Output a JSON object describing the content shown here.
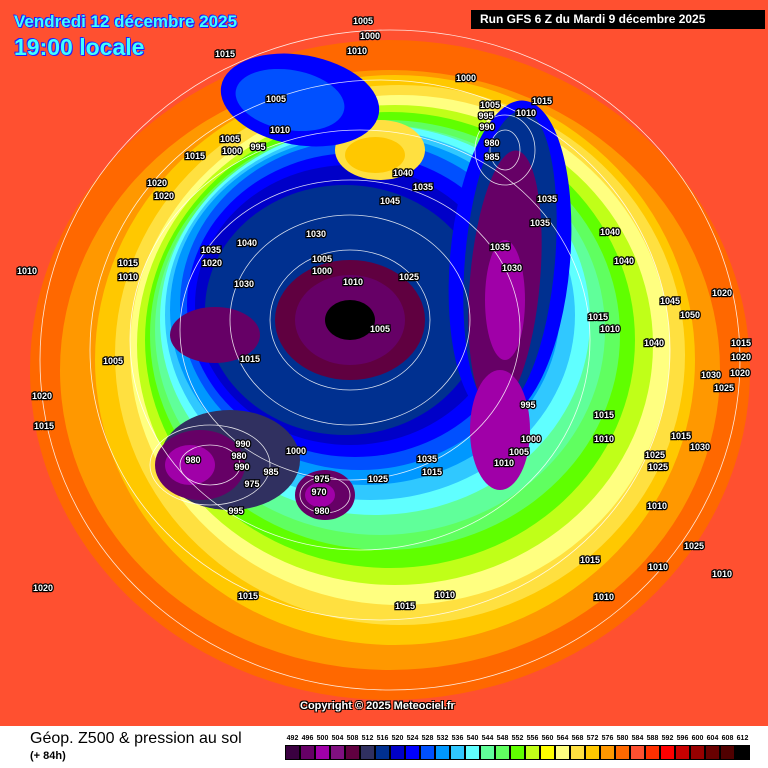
{
  "header": {
    "date": "Vendredi 12 décembre 2025",
    "time": "19:00 locale",
    "run": "Run GFS 6 Z du Mardi 9 décembre 2025"
  },
  "map": {
    "copyright": "Copyright © 2025 Meteociel.fr",
    "pressure_labels": [
      "1005",
      "1000",
      "1010",
      "1015",
      "1005",
      "1010",
      "1005",
      "995",
      "1000",
      "1015",
      "1020",
      "1020",
      "1000",
      "1005",
      "1015",
      "1010",
      "995",
      "990",
      "980",
      "985",
      "1040",
      "1035",
      "1045",
      "1035",
      "1035",
      "1040",
      "1030",
      "1035",
      "1040",
      "1020",
      "1005",
      "1000",
      "1010",
      "1025",
      "1005",
      "1030",
      "1035",
      "1030",
      "1040",
      "1010",
      "1015",
      "1010",
      "1005",
      "1015",
      "1020",
      "1040",
      "1045",
      "1050",
      "1015",
      "1010",
      "1015",
      "1020",
      "1020",
      "1025",
      "995",
      "1000",
      "1005",
      "1010",
      "980",
      "980",
      "990",
      "975",
      "985",
      "990",
      "1000",
      "975",
      "970",
      "980",
      "995",
      "1025",
      "1035",
      "1015",
      "1030",
      "1020",
      "1015",
      "1015",
      "1015",
      "1025",
      "1025",
      "1030",
      "1010",
      "1010",
      "1025",
      "1015",
      "1010",
      "1015",
      "1010",
      "1010",
      "1010",
      "1020",
      "1015"
    ]
  },
  "footer": {
    "title": "Géop. Z500 & pression au sol",
    "lead": "(+ 84h)"
  },
  "legend": {
    "levels": [
      "492",
      "496",
      "500",
      "504",
      "508",
      "512",
      "516",
      "520",
      "524",
      "528",
      "532",
      "536",
      "540",
      "544",
      "548",
      "552",
      "556",
      "560",
      "564",
      "568",
      "572",
      "576",
      "580",
      "584",
      "588",
      "592",
      "596",
      "600",
      "604",
      "608",
      "612"
    ],
    "colors": [
      "#3a0040",
      "#660066",
      "#a000a8",
      "#801080",
      "#600040",
      "#303060",
      "#003090",
      "#0000c8",
      "#0000ff",
      "#0050ff",
      "#0098ff",
      "#30c8ff",
      "#60ffff",
      "#60ff9a",
      "#60ff60",
      "#60ff00",
      "#c0ff18",
      "#ffff00",
      "#ffff80",
      "#ffe040",
      "#ffc800",
      "#ff9800",
      "#ff6800",
      "#ff5030",
      "#ff3000",
      "#ff0000",
      "#c80000",
      "#980000",
      "#680000",
      "#500000",
      "#000000"
    ]
  }
}
